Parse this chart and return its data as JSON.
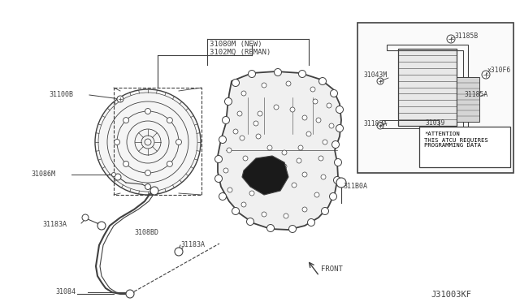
{
  "bg_color": "#ffffff",
  "line_color": "#404040",
  "diagram_code": "J31003KF",
  "labels": {
    "top_label1": "31080M (NEW)",
    "top_label2": "3102MQ (REMAN)",
    "lbl_31100B": "31100B",
    "lbl_31086M": "31086M",
    "lbl_31183A_left": "31183A",
    "lbl_3108BD": "3108BD",
    "lbl_31183A_mid": "31183A",
    "lbl_31084": "31084",
    "lbl_311B0A": "311B0A",
    "lbl_FRONT": "FRONT",
    "lbl_31185B": "31185B",
    "lbl_x310F6": "x310F6",
    "lbl_31043M": "31043M",
    "lbl_31185A_right": "31185A",
    "lbl_31039": "31039",
    "lbl_31185A_low": "31185A"
  },
  "attention_text": "*ATTENTION\nTHIS ATCU REQUIRES\nPROGRAMMING DATA"
}
